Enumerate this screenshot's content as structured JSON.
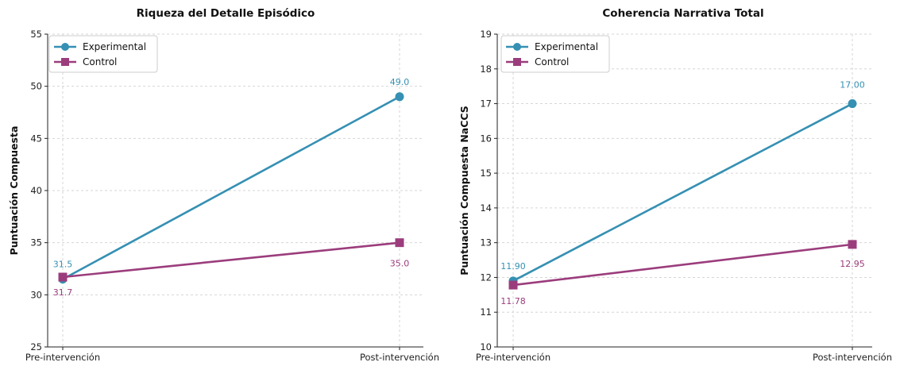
{
  "colors": {
    "experimental": "#3590b3",
    "control": "#9b3d7c"
  },
  "chart_data": [
    {
      "type": "line",
      "title": "Riqueza del Detalle Episódico",
      "xlabel": "",
      "ylabel": "Puntuación Compuesta",
      "categories": [
        "Pre-intervención",
        "Post-intervención"
      ],
      "ylim": [
        25,
        55
      ],
      "yticks": [
        25,
        30,
        35,
        40,
        45,
        50,
        55
      ],
      "grid": true,
      "legend_position": "top-left",
      "series": [
        {
          "name": "Experimental",
          "marker": "circle",
          "values": [
            31.5,
            49.0
          ],
          "labels": [
            "31.5",
            "49.0"
          ]
        },
        {
          "name": "Control",
          "marker": "square",
          "values": [
            31.7,
            35.0
          ],
          "labels": [
            "31.7",
            "35.0"
          ]
        }
      ]
    },
    {
      "type": "line",
      "title": "Coherencia Narrativa Total",
      "xlabel": "",
      "ylabel": "Puntuación Compuesta NaCCS",
      "categories": [
        "Pre-intervención",
        "Post-intervención"
      ],
      "ylim": [
        10,
        19
      ],
      "yticks": [
        10,
        11,
        12,
        13,
        14,
        15,
        16,
        17,
        18,
        19
      ],
      "grid": true,
      "legend_position": "top-left",
      "series": [
        {
          "name": "Experimental",
          "marker": "circle",
          "values": [
            11.9,
            17.0
          ],
          "labels": [
            "11.90",
            "17.00"
          ]
        },
        {
          "name": "Control",
          "marker": "square",
          "values": [
            11.78,
            12.95
          ],
          "labels": [
            "11.78",
            "12.95"
          ]
        }
      ]
    }
  ]
}
